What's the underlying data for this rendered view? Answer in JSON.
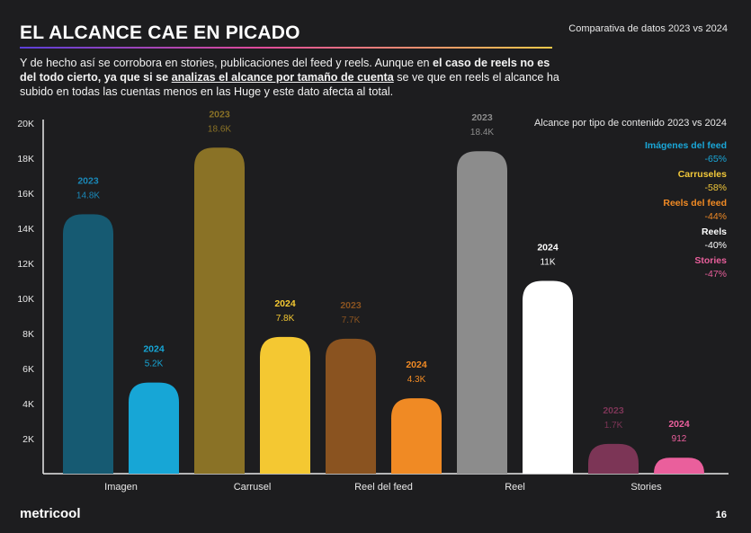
{
  "header": {
    "title": "EL ALCANCE CAE EN PICADO",
    "top_right": "Comparativa de datos 2023 vs 2024"
  },
  "intro": {
    "part1": "Y de hecho así se corrobora en stories, publicaciones del feed y reels. Aunque en ",
    "bold1": "el caso de reels no es del todo cierto, ya que si se ",
    "underlined": "analizas el alcance por tamaño de cuenta",
    "part2": " se ve que en reels el alcance ha subido en todas las cuentas menos en las Huge y este dato afecta al total."
  },
  "legend": {
    "title": "Alcance por tipo de contenido 2023 vs 2024",
    "items": [
      {
        "name": "Imágenes del feed",
        "pct": "-65%",
        "color": "#1aa7d8"
      },
      {
        "name": "Carruseles",
        "pct": "-58%",
        "color": "#f2c83a"
      },
      {
        "name": "Reels del feed",
        "pct": "-44%",
        "color": "#f08a24"
      },
      {
        "name": "Reels",
        "pct": "-40%",
        "color": "#ffffff"
      },
      {
        "name": "Stories",
        "pct": "-47%",
        "color": "#e85f9b"
      }
    ]
  },
  "footer": {
    "brand": "metricool",
    "page": "16"
  },
  "chart_data": {
    "type": "bar",
    "categories": [
      "Imagen",
      "Carrusel",
      "Reel del feed",
      "Reel",
      "Stories"
    ],
    "ylim": [
      0,
      20000
    ],
    "yticks": [
      2000,
      4000,
      6000,
      8000,
      10000,
      12000,
      14000,
      16000,
      18000,
      20000
    ],
    "ytick_labels": [
      "2K",
      "4K",
      "6K",
      "8K",
      "10K",
      "12K",
      "14K",
      "16K",
      "18K",
      "20K"
    ],
    "grid": false,
    "series": [
      {
        "name": "2023",
        "values": [
          14800,
          18600,
          7700,
          18400,
          1700
        ],
        "labels": [
          "14.8K",
          "18.6K",
          "7.7K",
          "18.4K",
          "1.7K"
        ],
        "colors": [
          "#165a72",
          "#8a7226",
          "#8a5320",
          "#8c8c8c",
          "#7c3556"
        ],
        "label_colors": [
          "#1a88b8",
          "#8a7226",
          "#8a5320",
          "#8c8c8c",
          "#7c3556"
        ]
      },
      {
        "name": "2024",
        "values": [
          5200,
          7800,
          4300,
          11000,
          912
        ],
        "labels": [
          "5.2K",
          "7.8K",
          "4.3K",
          "11K",
          "912"
        ],
        "colors": [
          "#17a6d6",
          "#f4c832",
          "#f08a24",
          "#ffffff",
          "#ea5f9c"
        ],
        "label_colors": [
          "#17a6d6",
          "#f4c832",
          "#f08a24",
          "#ffffff",
          "#ea5f9c"
        ]
      }
    ]
  }
}
